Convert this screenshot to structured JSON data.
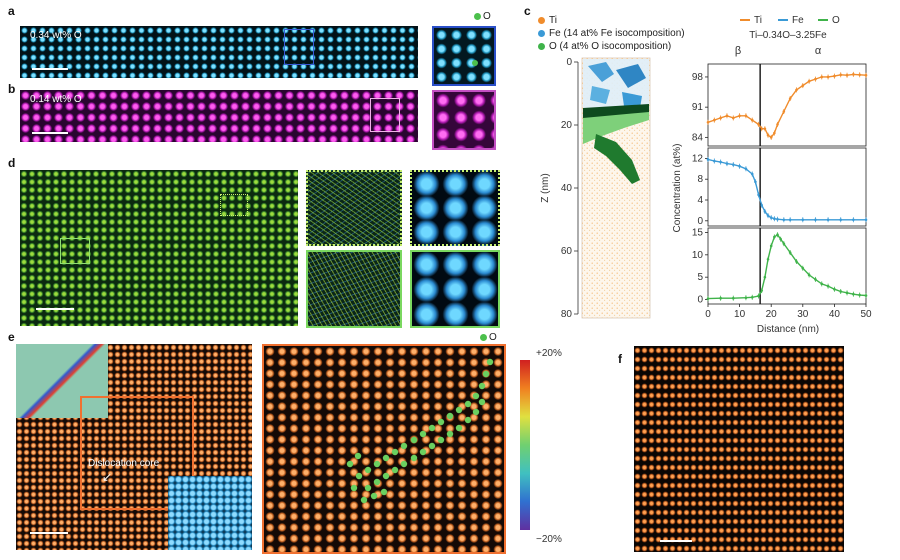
{
  "panels": {
    "a": {
      "label": "a",
      "overlay": "0.34 wt% O",
      "inset_legend": "O",
      "o_color": "#4cc04c"
    },
    "b": {
      "label": "b",
      "overlay": "0.14 wt% O"
    },
    "c": {
      "label": "c",
      "legend": [
        {
          "text": "Ti",
          "color": "#f08c2c"
        },
        {
          "text": "Fe (14 at% Fe isocomposition)",
          "color": "#3a9ad6"
        },
        {
          "text": "O (4 at% O isocomposition)",
          "color": "#3fb34a"
        }
      ],
      "recon_axis_label": "Z (nm)",
      "recon_ticks": [
        "0",
        "20",
        "40",
        "60",
        "80"
      ]
    },
    "d": {
      "label": "d"
    },
    "e": {
      "label": "e",
      "dislocation_text": "Dislocation core",
      "inset_legend": "O",
      "colorbar_top": "+20%",
      "colorbar_bottom": "−20%"
    },
    "f": {
      "label": "f"
    }
  },
  "chart_data": {
    "type": "line",
    "title": "Ti–0.34O–3.25Fe",
    "legend": [
      {
        "name": "Ti",
        "color": "#f08c2c"
      },
      {
        "name": "Fe",
        "color": "#3a9ad6"
      },
      {
        "name": "O",
        "color": "#3fb34a"
      }
    ],
    "phase_labels": [
      "β",
      "α"
    ],
    "interface_x": 16.5,
    "xlabel": "Distance (nm)",
    "ylabel": "Concentration (at%)",
    "xlim": [
      0,
      50
    ],
    "xticks": [
      "0",
      "10",
      "20",
      "30",
      "40",
      "50"
    ],
    "subplots": [
      {
        "series": "Ti",
        "ylim": [
          82,
          101
        ],
        "yticks": [
          84,
          91,
          98
        ],
        "x": [
          0,
          2,
          4,
          6,
          8,
          10,
          12,
          14,
          16,
          17,
          18,
          19,
          20,
          21,
          22,
          24,
          26,
          28,
          30,
          32,
          34,
          36,
          38,
          40,
          42,
          44,
          46,
          48,
          50
        ],
        "y": [
          87.5,
          88,
          88.5,
          89,
          88.5,
          89,
          89,
          88,
          87,
          86,
          86,
          84.5,
          84,
          85,
          87,
          90,
          93,
          95,
          96,
          97,
          97.5,
          98,
          98,
          98.2,
          98.5,
          98.4,
          98.6,
          98.5,
          98.4
        ]
      },
      {
        "series": "Fe",
        "ylim": [
          -1,
          14
        ],
        "yticks": [
          0,
          4,
          8,
          12
        ],
        "x": [
          0,
          2,
          4,
          6,
          8,
          10,
          12,
          14,
          15,
          16,
          17,
          18,
          19,
          20,
          21,
          22,
          24,
          26,
          30,
          34,
          38,
          42,
          46,
          50
        ],
        "y": [
          11.8,
          11.5,
          11.3,
          11,
          10.8,
          10.5,
          10,
          9,
          7.5,
          5,
          3,
          1.8,
          1,
          0.6,
          0.4,
          0.3,
          0.2,
          0.2,
          0.2,
          0.2,
          0.2,
          0.2,
          0.2,
          0.2
        ]
      },
      {
        "series": "O",
        "ylim": [
          -1,
          16
        ],
        "yticks": [
          0,
          5,
          10,
          15
        ],
        "x": [
          0,
          4,
          8,
          12,
          14,
          16,
          17,
          18,
          19,
          20,
          21,
          22,
          23,
          24,
          26,
          28,
          30,
          32,
          34,
          36,
          38,
          40,
          42,
          44,
          46,
          48,
          50
        ],
        "y": [
          0.2,
          0.3,
          0.3,
          0.4,
          0.5,
          0.8,
          2,
          5,
          9,
          12,
          14,
          14.5,
          13.5,
          12.5,
          10.5,
          8.5,
          7,
          5.5,
          4.5,
          3.5,
          3,
          2.3,
          1.8,
          1.5,
          1.2,
          1,
          0.9
        ]
      }
    ]
  }
}
